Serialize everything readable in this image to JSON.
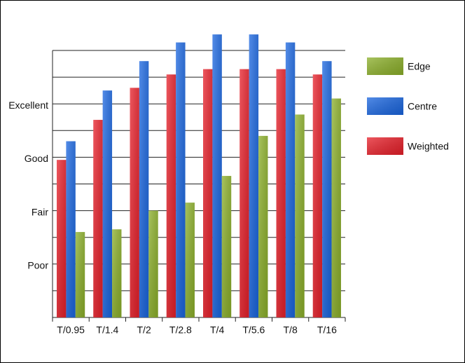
{
  "chart_data": {
    "type": "bar",
    "categories": [
      "T/0.95",
      "T/1.4",
      "T/2",
      "T/2.8",
      "T/4",
      "T/5.6",
      "T/8",
      "T/16"
    ],
    "series": [
      {
        "name": "Weighted",
        "color": "#e8202a",
        "values": [
          5.9,
          7.4,
          8.6,
          9.1,
          9.3,
          9.3,
          9.3,
          9.1
        ]
      },
      {
        "name": "Centre",
        "color": "#1a66e0",
        "values": [
          6.6,
          8.5,
          9.6,
          10.3,
          10.6,
          10.6,
          10.3,
          9.6
        ]
      },
      {
        "name": "Edge",
        "color": "#8cb02a",
        "values": [
          3.2,
          3.3,
          4.0,
          4.3,
          5.3,
          6.8,
          7.6,
          8.2
        ]
      }
    ],
    "ylim": [
      0,
      10
    ],
    "yticks": [
      {
        "value": 2,
        "label": "Poor"
      },
      {
        "value": 4,
        "label": "Fair"
      },
      {
        "value": 6,
        "label": "Good"
      },
      {
        "value": 8,
        "label": "Excellent"
      }
    ],
    "ygrid": [
      0,
      1,
      2,
      3,
      4,
      5,
      6,
      7,
      8,
      9,
      10
    ],
    "legend": "right"
  }
}
